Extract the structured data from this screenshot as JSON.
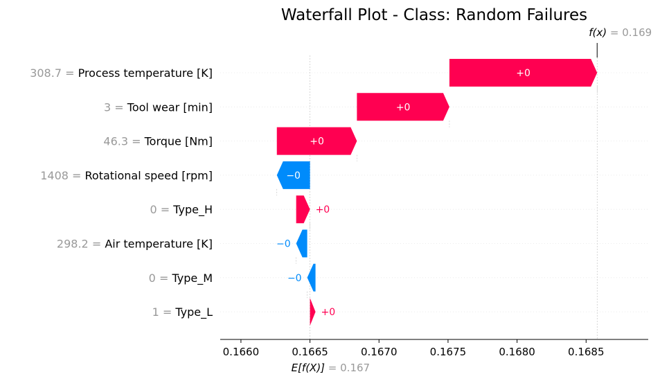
{
  "chart_data": {
    "type": "waterfall",
    "title": "Waterfall Plot - Class: Random Failures",
    "xlim": [
      0.16585,
      0.16895
    ],
    "x_ticks": [
      0.166,
      0.1665,
      0.167,
      0.1675,
      0.168,
      0.1685
    ],
    "x_tick_labels": [
      "0.1660",
      "0.1665",
      "0.1670",
      "0.1675",
      "0.1680",
      "0.1685"
    ],
    "base_value": 0.1665,
    "base_value_label": "E[f(X)]",
    "base_value_text": "= 0.167",
    "output_value": 0.16858,
    "output_value_label": "f(x)",
    "output_value_text": "= 0.169",
    "positive_color": "#ff0051",
    "negative_color": "#008bfb",
    "features": [
      {
        "value": "308.7",
        "name": "Process temperature [K]",
        "start": 0.16751,
        "end": 0.16858,
        "label": "+0"
      },
      {
        "value": "3",
        "name": "Tool wear [min]",
        "start": 0.16684,
        "end": 0.16751,
        "label": "+0"
      },
      {
        "value": "46.3",
        "name": "Torque [Nm]",
        "start": 0.16626,
        "end": 0.16684,
        "label": "+0"
      },
      {
        "value": "1408",
        "name": "Rotational speed [rpm]",
        "start": 0.1665,
        "end": 0.16626,
        "label": "−0"
      },
      {
        "value": "0",
        "name": "Type_H",
        "start": 0.1664,
        "end": 0.1665,
        "label": "+0"
      },
      {
        "value": "298.2",
        "name": "Air temperature [K]",
        "start": 0.16648,
        "end": 0.1664,
        "label": "−0"
      },
      {
        "value": "0",
        "name": "Type_M",
        "start": 0.16654,
        "end": 0.16648,
        "label": "−0"
      },
      {
        "value": "1",
        "name": "Type_L",
        "start": 0.1665,
        "end": 0.16654,
        "label": "+0"
      }
    ]
  }
}
